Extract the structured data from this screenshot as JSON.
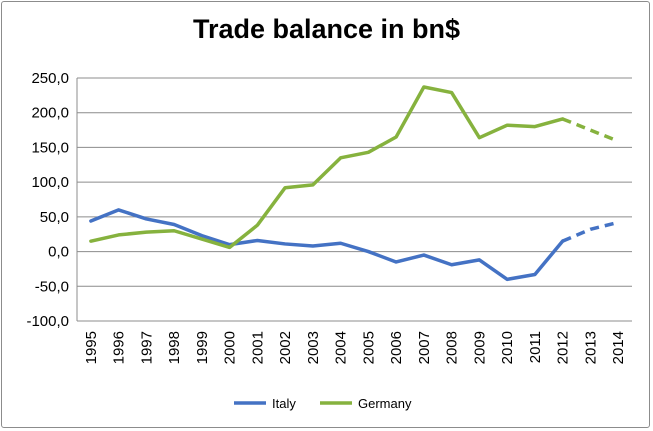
{
  "chart_data": {
    "type": "line",
    "title": "Trade balance in bn$",
    "xlabel": "",
    "ylabel": "",
    "categories": [
      "1995",
      "1996",
      "1997",
      "1998",
      "1999",
      "2000",
      "2001",
      "2002",
      "2003",
      "2004",
      "2005",
      "2006",
      "2007",
      "2008",
      "2009",
      "2010",
      "2011",
      "2012",
      "2013",
      "2014"
    ],
    "y_ticks": [
      "250,0",
      "200,0",
      "150,0",
      "100,0",
      "50,0",
      "0,0",
      "-50,0",
      "-100,0"
    ],
    "ylim": [
      -100,
      250
    ],
    "grid": true,
    "legend_position": "bottom",
    "forecast_from": "2012",
    "series": [
      {
        "name": "Italy",
        "color": "#4472C4",
        "values": [
          44,
          60,
          47,
          39,
          23,
          10,
          16,
          11,
          8,
          12,
          0,
          -15,
          -5,
          -19,
          -12,
          -40,
          -33,
          15,
          32,
          42
        ]
      },
      {
        "name": "Germany",
        "color": "#86B23E",
        "values": [
          15,
          24,
          28,
          30,
          18,
          6,
          38,
          92,
          96,
          135,
          143,
          165,
          237,
          229,
          164,
          182,
          180,
          191,
          175,
          159
        ]
      }
    ]
  }
}
